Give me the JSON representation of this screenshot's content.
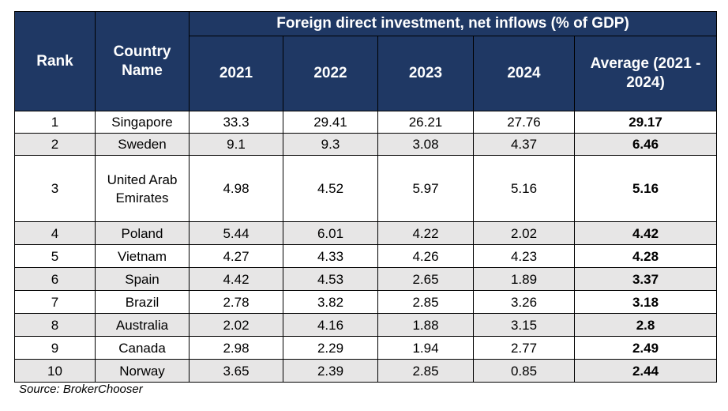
{
  "table": {
    "header": {
      "rank": "Rank",
      "country": "Country Name",
      "group_title": "Foreign direct investment, net inflows (% of GDP)",
      "years": [
        "2021",
        "2022",
        "2023",
        "2024"
      ],
      "average": "Average (2021 - 2024)"
    },
    "rows": [
      {
        "rank": "1",
        "country": "Singapore",
        "y2021": "33.3",
        "y2022": "29.41",
        "y2023": "26.21",
        "y2024": "27.76",
        "average": "29.17"
      },
      {
        "rank": "2",
        "country": "Sweden",
        "y2021": "9.1",
        "y2022": "9.3",
        "y2023": "3.08",
        "y2024": "4.37",
        "average": "6.46"
      },
      {
        "rank": "3",
        "country": "United Arab Emirates",
        "y2021": "4.98",
        "y2022": "4.52",
        "y2023": "5.97",
        "y2024": "5.16",
        "average": "5.16"
      },
      {
        "rank": "4",
        "country": "Poland",
        "y2021": "5.44",
        "y2022": "6.01",
        "y2023": "4.22",
        "y2024": "2.02",
        "average": "4.42"
      },
      {
        "rank": "5",
        "country": "Vietnam",
        "y2021": "4.27",
        "y2022": "4.33",
        "y2023": "4.26",
        "y2024": "4.23",
        "average": "4.28"
      },
      {
        "rank": "6",
        "country": "Spain",
        "y2021": "4.42",
        "y2022": "4.53",
        "y2023": "2.65",
        "y2024": "1.89",
        "average": "3.37"
      },
      {
        "rank": "7",
        "country": "Brazil",
        "y2021": "2.78",
        "y2022": "3.82",
        "y2023": "2.85",
        "y2024": "3.26",
        "average": "3.18"
      },
      {
        "rank": "8",
        "country": "Australia",
        "y2021": "2.02",
        "y2022": "4.16",
        "y2023": "1.88",
        "y2024": "3.15",
        "average": "2.8"
      },
      {
        "rank": "9",
        "country": "Canada",
        "y2021": "2.98",
        "y2022": "2.29",
        "y2023": "1.94",
        "y2024": "2.77",
        "average": "2.49"
      },
      {
        "rank": "10",
        "country": "Norway",
        "y2021": "3.65",
        "y2022": "2.39",
        "y2023": "2.85",
        "y2024": "0.85",
        "average": "2.44"
      }
    ]
  },
  "source": "Source: BrokerChooser",
  "colors": {
    "header_bg": "#1f3864",
    "header_text": "#ffffff",
    "stripe": "#e7e6e6"
  },
  "chart_data": {
    "type": "table",
    "title": "Foreign direct investment, net inflows (% of GDP)",
    "columns": [
      "Rank",
      "Country Name",
      "2021",
      "2022",
      "2023",
      "2024",
      "Average (2021 - 2024)"
    ],
    "rows": [
      [
        1,
        "Singapore",
        33.3,
        29.41,
        26.21,
        27.76,
        29.17
      ],
      [
        2,
        "Sweden",
        9.1,
        9.3,
        3.08,
        4.37,
        6.46
      ],
      [
        3,
        "United Arab Emirates",
        4.98,
        4.52,
        5.97,
        5.16,
        5.16
      ],
      [
        4,
        "Poland",
        5.44,
        6.01,
        4.22,
        2.02,
        4.42
      ],
      [
        5,
        "Vietnam",
        4.27,
        4.33,
        4.26,
        4.23,
        4.28
      ],
      [
        6,
        "Spain",
        4.42,
        4.53,
        2.65,
        1.89,
        3.37
      ],
      [
        7,
        "Brazil",
        2.78,
        3.82,
        2.85,
        3.26,
        3.18
      ],
      [
        8,
        "Australia",
        2.02,
        4.16,
        1.88,
        3.15,
        2.8
      ],
      [
        9,
        "Canada",
        2.98,
        2.29,
        1.94,
        2.77,
        2.49
      ],
      [
        10,
        "Norway",
        3.65,
        2.39,
        2.85,
        0.85,
        2.44
      ]
    ]
  }
}
